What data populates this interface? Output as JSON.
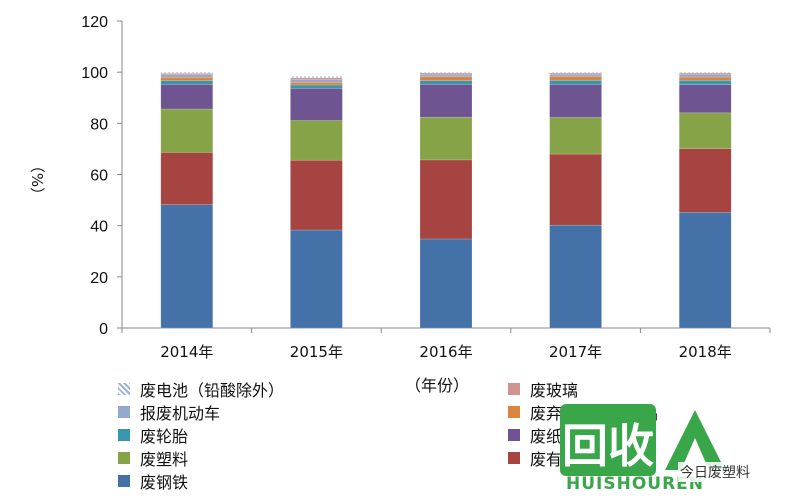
{
  "chart_data": {
    "type": "bar",
    "stacked": true,
    "categories": [
      "2014年",
      "2015年",
      "2016年",
      "2017年",
      "2018年"
    ],
    "xlabel": "（年份）",
    "ylabel": "（%）",
    "ylim": [
      0,
      120
    ],
    "yticks": [
      0,
      20,
      40,
      60,
      80,
      100,
      120
    ],
    "grid": false,
    "legend_position": "bottom",
    "series": [
      {
        "name": "废钢铁",
        "color": "#4472a8",
        "values": [
          48.2,
          38.3,
          34.8,
          40.2,
          45.2
        ]
      },
      {
        "name": "废有色金属",
        "color": "#a64441",
        "values": [
          20.4,
          27.3,
          30.9,
          27.8,
          24.9
        ]
      },
      {
        "name": "废塑料",
        "color": "#86a348",
        "values": [
          17.0,
          15.5,
          16.7,
          14.3,
          14.0
        ]
      },
      {
        "name": "废纸",
        "color": "#6e5592",
        "values": [
          9.6,
          12.6,
          12.8,
          12.9,
          11.0
        ]
      },
      {
        "name": "废轮胎",
        "color": "#3a96ad",
        "values": [
          1.5,
          1.3,
          1.5,
          1.6,
          1.7
        ]
      },
      {
        "name": "废弃电器电子产品",
        "color": "#db843d",
        "values": [
          1.3,
          1.1,
          1.5,
          1.5,
          1.3
        ]
      },
      {
        "name": "报废机动车",
        "color": "#93a9cf",
        "values": [
          1.0,
          1.0,
          0.9,
          0.9,
          1.0
        ]
      },
      {
        "name": "废玻璃",
        "color": "#d09392",
        "values": [
          0.6,
          0.7,
          0.6,
          0.5,
          0.6
        ]
      },
      {
        "name": "废电池（铅酸除外）",
        "color": "#b9cde5",
        "pattern": "dotted",
        "values": [
          0.4,
          0.6,
          0.3,
          0.3,
          0.3
        ]
      }
    ]
  },
  "legend": {
    "rows": [
      {
        "left": {
          "label": "废电池（铅酸除外）",
          "color": "#b9cde5",
          "pattern": "dotted"
        },
        "right": {
          "label": "废玻璃",
          "color": "#d09392"
        }
      },
      {
        "left": {
          "label": "报废机动车",
          "color": "#93a9cf"
        },
        "right": {
          "label": "废弃电器电子产品",
          "color": "#db843d"
        }
      },
      {
        "left": {
          "label": "废轮胎",
          "color": "#3a96ad"
        },
        "right": {
          "label": "废纸",
          "color": "#6e5592"
        }
      },
      {
        "left": {
          "label": "废塑料",
          "color": "#86a348"
        },
        "right": {
          "label": "废有色金属",
          "color": "#a64441"
        }
      },
      {
        "left": {
          "label": "废钢铁",
          "color": "#4472a8"
        },
        "right": null
      }
    ]
  },
  "watermark": {
    "glyphs": "回收",
    "latin": "HUISHOUREN",
    "source": "今日废塑料"
  }
}
